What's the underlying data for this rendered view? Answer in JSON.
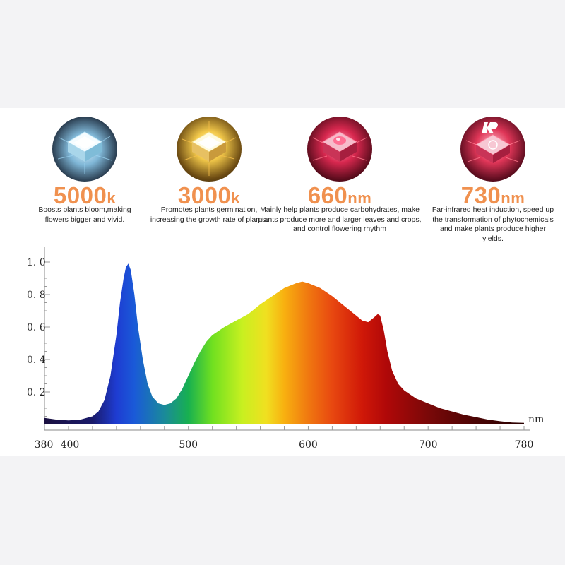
{
  "features": [
    {
      "value": "5000",
      "unit": "k",
      "icon": "white-led-chip-icon",
      "description": "Boosts plants bloom,making flowers bigger and vivid."
    },
    {
      "value": "3000",
      "unit": "k",
      "icon": "warm-white-led-chip-icon",
      "description": "Promotes plants germination, increasing the growth rate of plants."
    },
    {
      "value": "660",
      "unit": "nm",
      "icon": "red-led-chip-icon",
      "description": "Mainly help plants produce carbohydrates, make plants produce more and larger leaves and crops, and control flowering rhythm"
    },
    {
      "value": "730",
      "unit": "nm",
      "icon": "ir-led-chip-icon",
      "description": "Far-infrared heat induction, speed up the transformation of phytochemicals and make plants produce higher yields."
    }
  ],
  "chart_data": {
    "type": "area",
    "xlabel": "nm",
    "ylabel": "",
    "xlim": [
      380,
      780
    ],
    "ylim": [
      0,
      1.0
    ],
    "x_ticks": [
      380,
      400,
      500,
      600,
      700,
      780
    ],
    "y_ticks": [
      0.2,
      0.4,
      0.6,
      0.8,
      1.0
    ],
    "y_tick_labels": [
      "0. 2",
      "0. 4",
      "0. 6",
      "0. 8",
      "1. 0"
    ],
    "grid": false,
    "series": [
      {
        "x": [
          380,
          390,
          400,
          410,
          420,
          425,
          430,
          435,
          440,
          443,
          446,
          448,
          450,
          452,
          455,
          458,
          462,
          466,
          470,
          475,
          480,
          485,
          490,
          495,
          500,
          505,
          510,
          515,
          520,
          530,
          540,
          550,
          560,
          570,
          580,
          590,
          595,
          600,
          610,
          620,
          630,
          640,
          645,
          650,
          655,
          658,
          660,
          663,
          666,
          670,
          675,
          680,
          690,
          700,
          710,
          720,
          730,
          740,
          750,
          760,
          770,
          780
        ],
        "y": [
          0.04,
          0.03,
          0.025,
          0.03,
          0.05,
          0.08,
          0.15,
          0.3,
          0.55,
          0.75,
          0.9,
          0.97,
          0.99,
          0.95,
          0.8,
          0.6,
          0.4,
          0.25,
          0.17,
          0.13,
          0.12,
          0.13,
          0.16,
          0.22,
          0.3,
          0.38,
          0.45,
          0.51,
          0.55,
          0.6,
          0.64,
          0.68,
          0.74,
          0.79,
          0.84,
          0.87,
          0.88,
          0.87,
          0.84,
          0.79,
          0.73,
          0.67,
          0.64,
          0.63,
          0.66,
          0.68,
          0.67,
          0.58,
          0.45,
          0.33,
          0.25,
          0.21,
          0.16,
          0.13,
          0.1,
          0.08,
          0.06,
          0.045,
          0.03,
          0.02,
          0.012,
          0.01
        ]
      }
    ]
  }
}
